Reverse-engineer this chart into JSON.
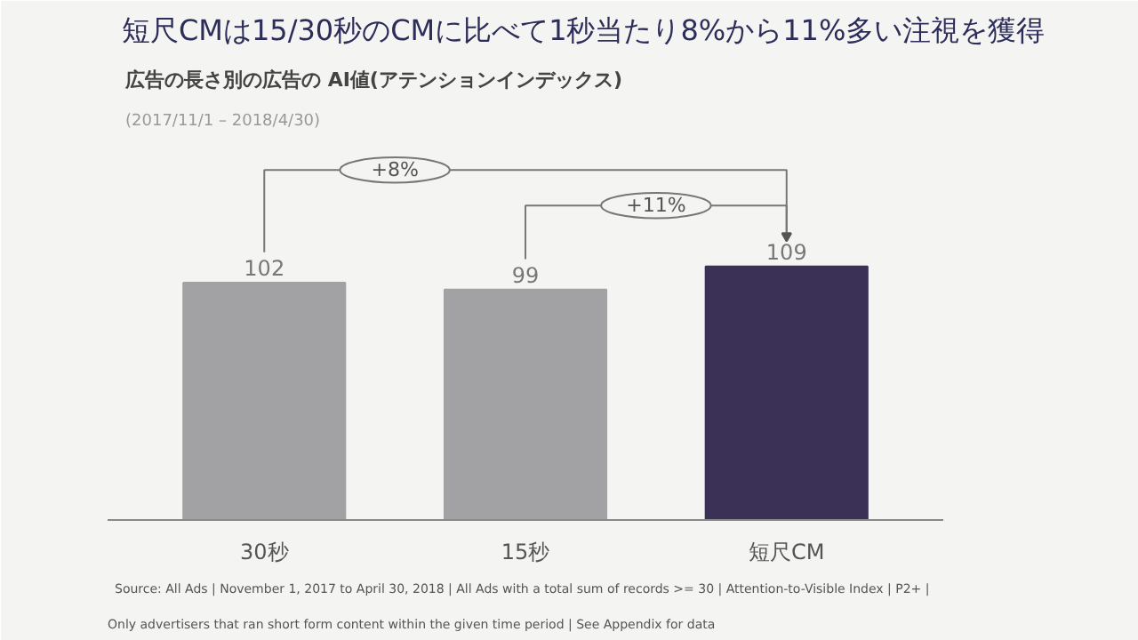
{
  "chart_data": {
    "type": "bar",
    "title": "短尺CMは15/30秒のCMに比べて1秒当たり8%から11%多い注視を獲得",
    "subtitle": "広告の長さ別の広告の AI値(アテンションインデックス)",
    "categories": [
      "30秒",
      "15秒",
      "短尺CM"
    ],
    "values": [
      102,
      99,
      109
    ],
    "colors": [
      "#a2a2a4",
      "#a2a2a4",
      "#3b3157"
    ],
    "data_labels": true,
    "grid": false,
    "annotations": [
      "(2017/11/1 – 2018/4/30)",
      "+8%",
      "+11%",
      "Source: All Ads | November 1, 2017 to April 30, 2018 | All Ads with a total sum of records >= 30 | Attention-to-Visible Index | P2+ |",
      "Only advertisers that ran short form content within the given time period | See Appendix for data"
    ]
  }
}
